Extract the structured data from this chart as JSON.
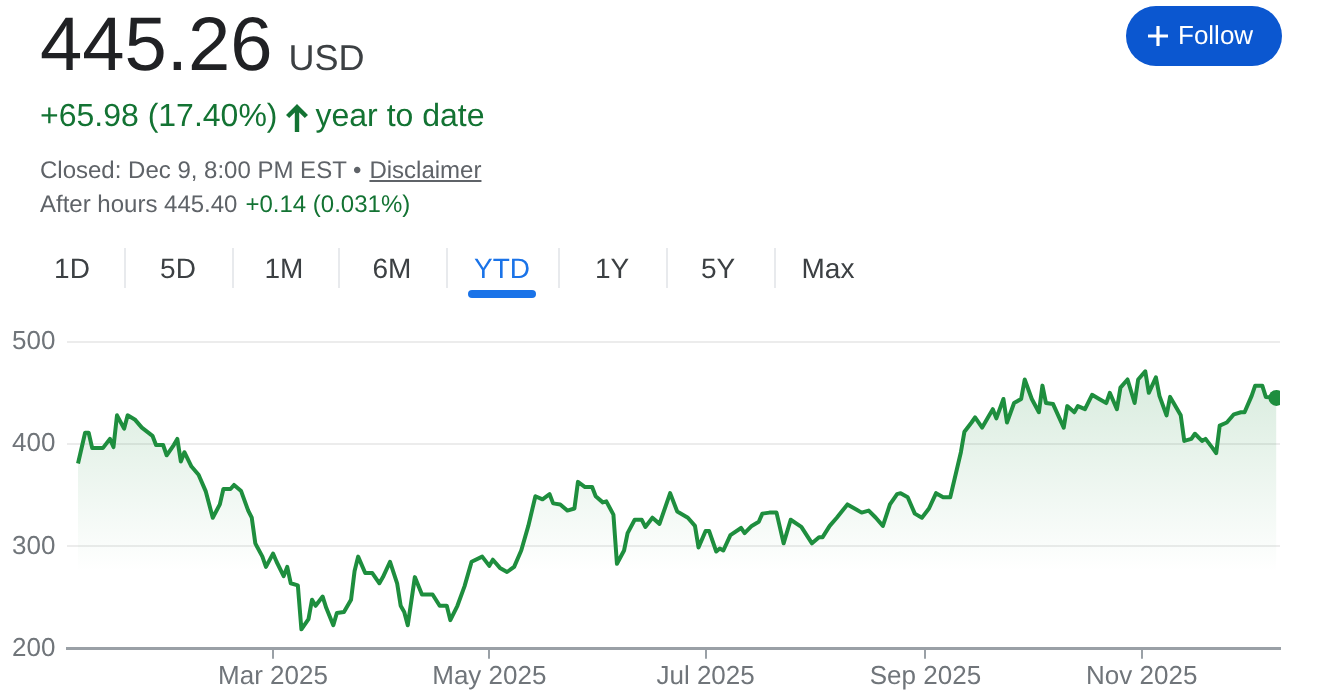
{
  "chart_data": {
    "type": "area",
    "title": "445.26",
    "subtitle": "USD",
    "annotations": [
      "+65.98 (17.40%)",
      "year to date",
      "Closed: Dec 9, 8:00 PM EST •",
      "Disclaimer",
      "After hours 445.40",
      "+0.14 (0.031%)",
      "Follow",
      "1D",
      "5D",
      "1M",
      "6M",
      "YTD",
      "1Y",
      "5Y",
      "Max"
    ],
    "x": [
      "2025-01-05",
      "2025-01-07",
      "2025-01-08",
      "2025-01-09",
      "2025-01-12",
      "2025-01-14",
      "2025-01-15",
      "2025-01-16",
      "2025-01-18",
      "2025-01-19",
      "2025-01-21",
      "2025-01-23",
      "2025-01-26",
      "2025-01-27",
      "2025-01-29",
      "2025-01-30",
      "2025-02-01",
      "2025-02-02",
      "2025-02-03",
      "2025-02-04",
      "2025-02-06",
      "2025-02-08",
      "2025-02-10",
      "2025-02-12",
      "2025-02-14",
      "2025-02-15",
      "2025-02-17",
      "2025-02-18",
      "2025-02-20",
      "2025-02-22",
      "2025-02-23",
      "2025-02-24",
      "2025-02-26",
      "2025-02-27",
      "2025-03-01",
      "2025-03-02",
      "2025-03-04",
      "2025-03-05",
      "2025-03-06",
      "2025-03-08",
      "2025-03-09",
      "2025-03-11",
      "2025-03-12",
      "2025-03-13",
      "2025-03-15",
      "2025-03-16",
      "2025-03-18",
      "2025-03-19",
      "2025-03-21",
      "2025-03-23",
      "2025-03-24",
      "2025-03-25",
      "2025-03-27",
      "2025-03-29",
      "2025-03-31",
      "2025-04-01",
      "2025-04-03",
      "2025-04-05",
      "2025-04-06",
      "2025-04-07",
      "2025-04-08",
      "2025-04-10",
      "2025-04-12",
      "2025-04-15",
      "2025-04-17",
      "2025-04-19",
      "2025-04-20",
      "2025-04-22",
      "2025-04-24",
      "2025-04-26",
      "2025-04-29",
      "2025-05-01",
      "2025-05-02",
      "2025-05-04",
      "2025-05-06",
      "2025-05-08",
      "2025-05-10",
      "2025-05-12",
      "2025-05-14",
      "2025-05-16",
      "2025-05-18",
      "2025-05-19",
      "2025-05-21",
      "2025-05-23",
      "2025-05-25",
      "2025-05-26",
      "2025-05-28",
      "2025-05-30",
      "2025-05-31",
      "2025-06-02",
      "2025-06-03",
      "2025-06-05",
      "2025-06-06",
      "2025-06-08",
      "2025-06-09",
      "2025-06-11",
      "2025-06-13",
      "2025-06-14",
      "2025-06-16",
      "2025-06-18",
      "2025-06-21",
      "2025-06-23",
      "2025-06-26",
      "2025-06-28",
      "2025-06-29",
      "2025-07-01",
      "2025-07-02",
      "2025-07-04",
      "2025-07-05",
      "2025-07-06",
      "2025-07-08",
      "2025-07-11",
      "2025-07-12",
      "2025-07-14",
      "2025-07-16",
      "2025-07-17",
      "2025-07-19",
      "2025-07-21",
      "2025-07-23",
      "2025-07-25",
      "2025-07-28",
      "2025-07-31",
      "2025-08-02",
      "2025-08-03",
      "2025-08-05",
      "2025-08-07",
      "2025-08-10",
      "2025-08-12",
      "2025-08-14",
      "2025-08-16",
      "2025-08-18",
      "2025-08-20",
      "2025-08-22",
      "2025-08-24",
      "2025-08-25",
      "2025-08-27",
      "2025-08-29",
      "2025-08-31",
      "2025-09-02",
      "2025-09-04",
      "2025-09-06",
      "2025-09-08",
      "2025-09-11",
      "2025-09-12",
      "2025-09-14",
      "2025-09-15",
      "2025-09-17",
      "2025-09-19",
      "2025-09-20",
      "2025-09-21",
      "2025-09-23",
      "2025-09-24",
      "2025-09-26",
      "2025-09-28",
      "2025-09-29",
      "2025-10-01",
      "2025-10-03",
      "2025-10-04",
      "2025-10-05",
      "2025-10-07",
      "2025-10-10",
      "2025-10-11",
      "2025-10-13",
      "2025-10-14",
      "2025-10-16",
      "2025-10-18",
      "2025-10-20",
      "2025-10-22",
      "2025-10-23",
      "2025-10-25",
      "2025-10-26",
      "2025-10-28",
      "2025-10-30",
      "2025-10-31",
      "2025-11-02",
      "2025-11-03",
      "2025-11-05",
      "2025-11-06",
      "2025-11-08",
      "2025-11-09",
      "2025-11-10",
      "2025-11-12",
      "2025-11-13",
      "2025-11-15",
      "2025-11-16",
      "2025-11-18",
      "2025-11-19",
      "2025-11-21",
      "2025-11-22",
      "2025-11-23",
      "2025-11-25",
      "2025-11-27",
      "2025-11-29",
      "2025-11-30",
      "2025-12-02",
      "2025-12-03",
      "2025-12-05",
      "2025-12-06",
      "2025-12-09"
    ],
    "series": [
      {
        "color": "#1e8e3e",
        "values": [
          381,
          411,
          411,
          396,
          396,
          405,
          397,
          428,
          415,
          428,
          424,
          416,
          408,
          399,
          399,
          389,
          399,
          405,
          383,
          392,
          378,
          370,
          354,
          328,
          341,
          356,
          356,
          360,
          354,
          335,
          328,
          303,
          290,
          280,
          293,
          285,
          271,
          280,
          264,
          262,
          219,
          229,
          248,
          242,
          251,
          240,
          223,
          235,
          236,
          248,
          276,
          290,
          274,
          274,
          264,
          270,
          285,
          264,
          242,
          236,
          223,
          270,
          253,
          253,
          242,
          242,
          228,
          242,
          261,
          285,
          290,
          281,
          287,
          279,
          275,
          280,
          296,
          320,
          349,
          346,
          351,
          342,
          341,
          335,
          337,
          363,
          358,
          358,
          349,
          343,
          344,
          331,
          283,
          296,
          313,
          326,
          326,
          319,
          328,
          322,
          352,
          334,
          328,
          320,
          299,
          315,
          315,
          295,
          298,
          296,
          311,
          318,
          313,
          320,
          324,
          332,
          333,
          333,
          303,
          326,
          319,
          303,
          309,
          309,
          320,
          328,
          341,
          337,
          333,
          335,
          328,
          320,
          341,
          351,
          352,
          348,
          332,
          328,
          337,
          352,
          348,
          348,
          392,
          412,
          421,
          426,
          416,
          428,
          434,
          425,
          444,
          421,
          440,
          444,
          463,
          444,
          431,
          457,
          440,
          439,
          416,
          437,
          431,
          437,
          434,
          448,
          444,
          440,
          450,
          434,
          455,
          463,
          440,
          463,
          471,
          450,
          465,
          447,
          428,
          446,
          440,
          428,
          403,
          405,
          410,
          403,
          405,
          396,
          391,
          418,
          421,
          429,
          431,
          431,
          447,
          457,
          457,
          446,
          445
        ]
      }
    ],
    "xlim": [
      "2025-01-02",
      "2025-12-10"
    ],
    "xticks": [
      {
        "value": "2025-03-01",
        "label": "Mar 2025"
      },
      {
        "value": "2025-05-01",
        "label": "May 2025"
      },
      {
        "value": "2025-07-01",
        "label": "Jul 2025"
      },
      {
        "value": "2025-09-01",
        "label": "Sep 2025"
      },
      {
        "value": "2025-11-01",
        "label": "Nov 2025"
      }
    ],
    "ylim": [
      200,
      500
    ],
    "yticks": [
      200,
      300,
      400,
      500
    ],
    "grid": "y",
    "legend": false
  }
}
